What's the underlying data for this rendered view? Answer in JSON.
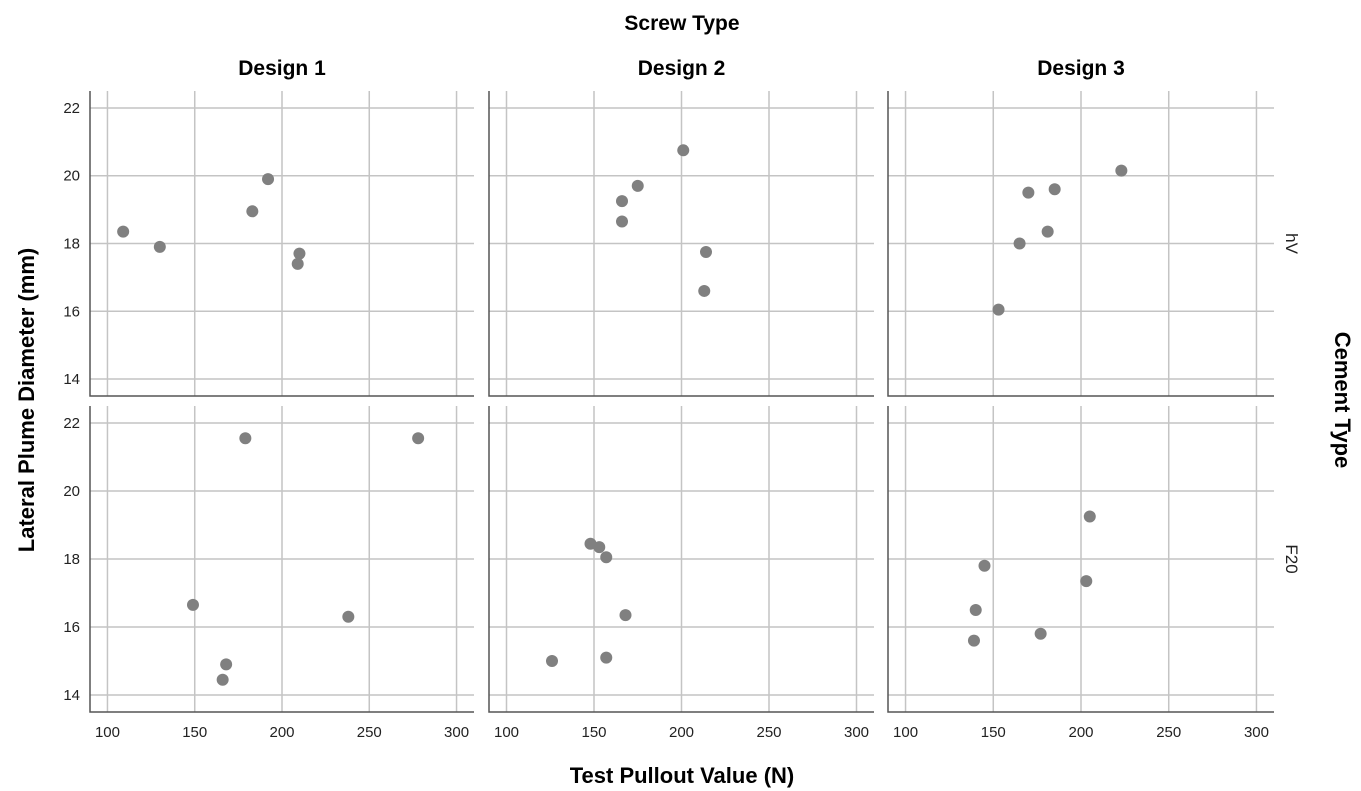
{
  "chart_data": {
    "type": "scatter",
    "title": "Screw Type",
    "xlabel": "Test Pullout Value (N)",
    "ylabel": "Lateral Plume Diameter (mm)",
    "row_facet_label": "Cement Type",
    "columns": [
      "Design 1",
      "Design 2",
      "Design 3"
    ],
    "rows": [
      "hV",
      "F20"
    ],
    "xlim": [
      90,
      310
    ],
    "ylim": [
      13.5,
      22.5
    ],
    "x_ticks": [
      "100",
      "150",
      "200",
      "250",
      "300"
    ],
    "y_ticks": [
      "14",
      "16",
      "18",
      "20",
      "22"
    ],
    "grid": true,
    "marker_color": "#808080",
    "panels": [
      {
        "column": "Design 1",
        "row": "hV",
        "points": [
          [
            109,
            18.35
          ],
          [
            130,
            17.9
          ],
          [
            183,
            18.95
          ],
          [
            192,
            19.9
          ],
          [
            210,
            17.7
          ],
          [
            209,
            17.4
          ]
        ]
      },
      {
        "column": "Design 2",
        "row": "hV",
        "points": [
          [
            166,
            19.25
          ],
          [
            175,
            19.7
          ],
          [
            166,
            18.65
          ],
          [
            201,
            20.75
          ],
          [
            214,
            17.75
          ],
          [
            213,
            16.6
          ]
        ]
      },
      {
        "column": "Design 3",
        "row": "hV",
        "points": [
          [
            170,
            19.5
          ],
          [
            185,
            19.6
          ],
          [
            165,
            18.0
          ],
          [
            181,
            18.35
          ],
          [
            223,
            20.15
          ],
          [
            153,
            16.05
          ]
        ]
      },
      {
        "column": "Design 1",
        "row": "F20",
        "points": [
          [
            179,
            21.55
          ],
          [
            278,
            21.55
          ],
          [
            149,
            16.65
          ],
          [
            238,
            16.3
          ],
          [
            168,
            14.9
          ],
          [
            166,
            14.45
          ]
        ]
      },
      {
        "column": "Design 2",
        "row": "F20",
        "points": [
          [
            148,
            18.45
          ],
          [
            153,
            18.35
          ],
          [
            157,
            18.05
          ],
          [
            168,
            16.35
          ],
          [
            126,
            15.0
          ],
          [
            157,
            15.1
          ]
        ]
      },
      {
        "column": "Design 3",
        "row": "F20",
        "points": [
          [
            205,
            19.25
          ],
          [
            145,
            17.8
          ],
          [
            203,
            17.35
          ],
          [
            140,
            16.5
          ],
          [
            177,
            15.8
          ],
          [
            139,
            15.6
          ]
        ]
      }
    ]
  }
}
